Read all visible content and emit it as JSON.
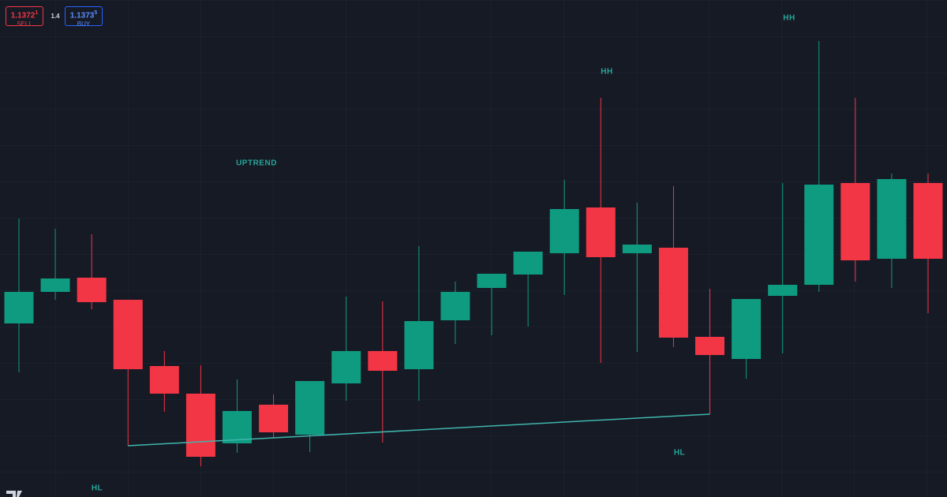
{
  "trade_panel": {
    "sell_price": "1.1372",
    "sell_pip": "1",
    "sell_label": "SELL",
    "spread": "1.4",
    "buy_price": "1.1373",
    "buy_pip": "5",
    "buy_label": "BUY"
  },
  "chart_data": {
    "type": "candlestick",
    "up_color": "#0f9b80",
    "down_color": "#f23645",
    "trendline_color": "#3fb6ad",
    "ylim": [
      1.13418,
      1.14048
    ],
    "open": [
      1.13638,
      1.13678,
      1.13696,
      1.13668,
      1.13584,
      1.13549,
      1.13486,
      1.13535,
      1.13497,
      1.13562,
      1.13603,
      1.1358,
      1.13642,
      1.13683,
      1.137,
      1.13727,
      1.13785,
      1.13727,
      1.13734,
      1.13621,
      1.13593,
      1.13673,
      1.13687,
      1.13816,
      1.1372,
      1.13816
    ],
    "high": [
      1.13771,
      1.13758,
      1.13751,
      1.13668,
      1.13603,
      1.13585,
      1.13567,
      1.13548,
      1.13565,
      1.13672,
      1.13666,
      1.13736,
      1.13691,
      1.13701,
      1.13729,
      1.1382,
      1.13924,
      1.13791,
      1.13812,
      1.13682,
      1.13669,
      1.13816,
      1.13996,
      1.13924,
      1.13828,
      1.13828
    ],
    "low": [
      1.13576,
      1.13668,
      1.13656,
      1.13483,
      1.13526,
      1.13457,
      1.13474,
      1.13493,
      1.13475,
      1.1354,
      1.13487,
      1.1354,
      1.13612,
      1.13623,
      1.13634,
      1.13674,
      1.13588,
      1.13602,
      1.13608,
      1.13523,
      1.13568,
      1.136,
      1.13678,
      1.13691,
      1.13683,
      1.13651
    ],
    "close": [
      1.13678,
      1.13695,
      1.13665,
      1.1358,
      1.13549,
      1.13469,
      1.13527,
      1.135,
      1.13565,
      1.13603,
      1.13578,
      1.13641,
      1.13678,
      1.13701,
      1.13729,
      1.13783,
      1.13722,
      1.13738,
      1.1362,
      1.13598,
      1.13669,
      1.13687,
      1.13814,
      1.13718,
      1.13821,
      1.1372
    ],
    "annotations": [
      "HH",
      "HH",
      "UPTREND",
      "HL",
      "HL"
    ]
  }
}
